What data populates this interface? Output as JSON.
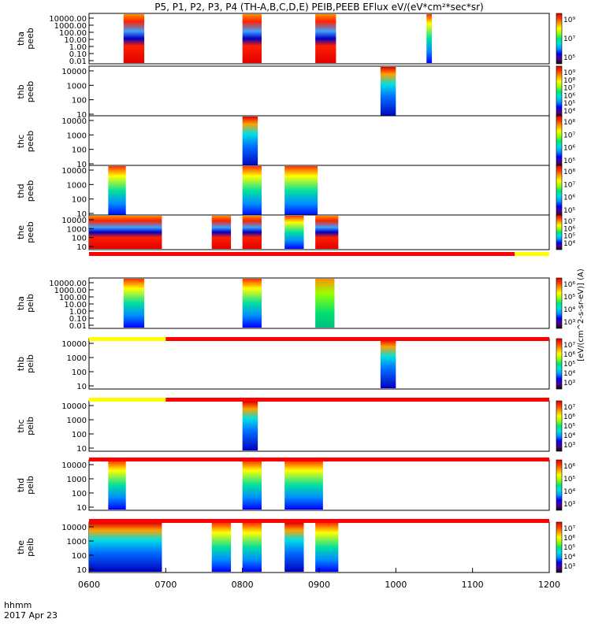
{
  "title": "P5, P1, P2, P3, P4 (TH-A,B,C,D,E) PEIB,PEEB EFlux eV/(eV*cm²*sec*sr)",
  "colorbar_unit_label": "[eV/(cm^2-s-sr-eV)] (A)",
  "colorbar_colors": [
    "#0a0a0a",
    "#50008c",
    "#0000ff",
    "#0096ff",
    "#00e0e0",
    "#00e878",
    "#9aff00",
    "#ffff00",
    "#ffa000",
    "#ff3c00",
    "#e00000"
  ],
  "footer": {
    "hhmm_label": "hhmm",
    "date_label": "2017 Apr 23"
  },
  "chart_data": {
    "type": "heatmap",
    "x_ticks": [
      "0600",
      "0700",
      "0800",
      "0900",
      "1000",
      "1100",
      "1200"
    ],
    "x_range_hours": [
      6,
      12
    ],
    "panels": [
      {
        "probe": "tha",
        "product": "peeb",
        "yticks": [
          "10000.00",
          "1000.00",
          "100.00",
          "10.00",
          "1.00",
          "0.10",
          "0.01"
        ],
        "cbar_ticks": [
          "10⁹",
          "10⁷",
          "10⁵"
        ],
        "blocks": [
          [
            6.45,
            6.72,
            "high"
          ],
          [
            8.0,
            8.25,
            "high"
          ],
          [
            8.95,
            9.22,
            "high"
          ],
          [
            10.4,
            10.47,
            "mid"
          ]
        ]
      },
      {
        "probe": "thb",
        "product": "peeb",
        "yticks": [
          "10000",
          "1000",
          "100",
          "10"
        ],
        "cbar_ticks": [
          "10⁹",
          "10⁸",
          "10⁷",
          "10⁶",
          "10⁵",
          "10⁴"
        ],
        "blocks": [
          [
            9.8,
            10.0,
            "low"
          ]
        ]
      },
      {
        "probe": "thc",
        "product": "peeb",
        "yticks": [
          "10000",
          "1000",
          "100",
          "10"
        ],
        "cbar_ticks": [
          "10⁸",
          "10⁷",
          "10⁶",
          "10⁵"
        ],
        "blocks": [
          [
            8.0,
            8.2,
            "low"
          ]
        ]
      },
      {
        "probe": "thd",
        "product": "peeb",
        "yticks": [
          "10000",
          "1000",
          "100",
          "10"
        ],
        "cbar_ticks": [
          "10⁸",
          "10⁷",
          "10⁶",
          "10⁵"
        ],
        "blocks": [
          [
            6.25,
            6.48,
            "mid"
          ],
          [
            8.0,
            8.25,
            "mid"
          ],
          [
            8.55,
            8.98,
            "mid"
          ]
        ]
      },
      {
        "probe": "the",
        "product": "peeb",
        "yticks": [
          "10000",
          "1000",
          "100",
          "10"
        ],
        "cbar_ticks": [
          "10⁷",
          "10⁶",
          "10⁵",
          "10⁴"
        ],
        "blocks": [
          [
            6.0,
            6.95,
            "high"
          ],
          [
            7.6,
            7.85,
            "high"
          ],
          [
            8.0,
            8.25,
            "high"
          ],
          [
            8.55,
            8.8,
            "mid"
          ],
          [
            8.95,
            9.25,
            "high"
          ]
        ]
      },
      {
        "probe": "tha",
        "product": "peib",
        "yticks": [
          "10000.00",
          "1000.00",
          "100.00",
          "10.00",
          "1.00",
          "0.10",
          "0.01"
        ],
        "cbar_ticks": [
          "10⁶",
          "10⁵",
          "10⁴",
          "10³"
        ],
        "blocks": [
          [
            6.45,
            6.72,
            "mid"
          ],
          [
            8.0,
            8.25,
            "mid"
          ],
          [
            8.95,
            9.2,
            "green"
          ]
        ]
      },
      {
        "probe": "thb",
        "product": "peib",
        "yticks": [
          "10000",
          "1000",
          "100",
          "10"
        ],
        "cbar_ticks": [
          "10⁷",
          "10⁶",
          "10⁵",
          "10⁴",
          "10³"
        ],
        "blocks": [
          [
            9.8,
            10.0,
            "low"
          ]
        ]
      },
      {
        "probe": "thc",
        "product": "peib",
        "yticks": [
          "10000",
          "1000",
          "100",
          "10"
        ],
        "cbar_ticks": [
          "10⁷",
          "10⁶",
          "10⁵",
          "10⁴",
          "10³"
        ],
        "blocks": [
          [
            8.0,
            8.2,
            "low"
          ]
        ]
      },
      {
        "probe": "thd",
        "product": "peib",
        "yticks": [
          "10000",
          "1000",
          "100",
          "10"
        ],
        "cbar_ticks": [
          "10⁶",
          "10⁵",
          "10⁴",
          "10³"
        ],
        "blocks": [
          [
            6.25,
            6.48,
            "mid"
          ],
          [
            8.0,
            8.25,
            "mid"
          ],
          [
            8.55,
            9.05,
            "mid"
          ]
        ]
      },
      {
        "probe": "the",
        "product": "peib",
        "yticks": [
          "10000",
          "1000",
          "100",
          "10"
        ],
        "cbar_ticks": [
          "10⁷",
          "10⁶",
          "10⁵",
          "10⁴",
          "10³"
        ],
        "blocks": [
          [
            6.0,
            6.95,
            "low"
          ],
          [
            7.6,
            7.85,
            "mid"
          ],
          [
            8.0,
            8.25,
            "mid"
          ],
          [
            8.55,
            8.8,
            "low"
          ],
          [
            8.95,
            9.25,
            "mid"
          ]
        ]
      }
    ],
    "mode_bars": [
      {
        "segments": [
          [
            6.0,
            11.55,
            "#ff0000"
          ],
          [
            11.55,
            12.0,
            "#ffff00"
          ]
        ]
      },
      {
        "segments": [
          [
            6.0,
            7.0,
            "#ffff00"
          ],
          [
            7.0,
            12.0,
            "#ff0000"
          ]
        ]
      },
      {
        "segments": [
          [
            6.0,
            7.0,
            "#ffff00"
          ],
          [
            7.0,
            12.0,
            "#ff0000"
          ]
        ]
      },
      {
        "segments": [
          [
            6.0,
            12.0,
            "#ff0000"
          ]
        ]
      },
      {
        "segments": [
          [
            6.0,
            12.0,
            "#ff0000"
          ]
        ]
      }
    ]
  }
}
